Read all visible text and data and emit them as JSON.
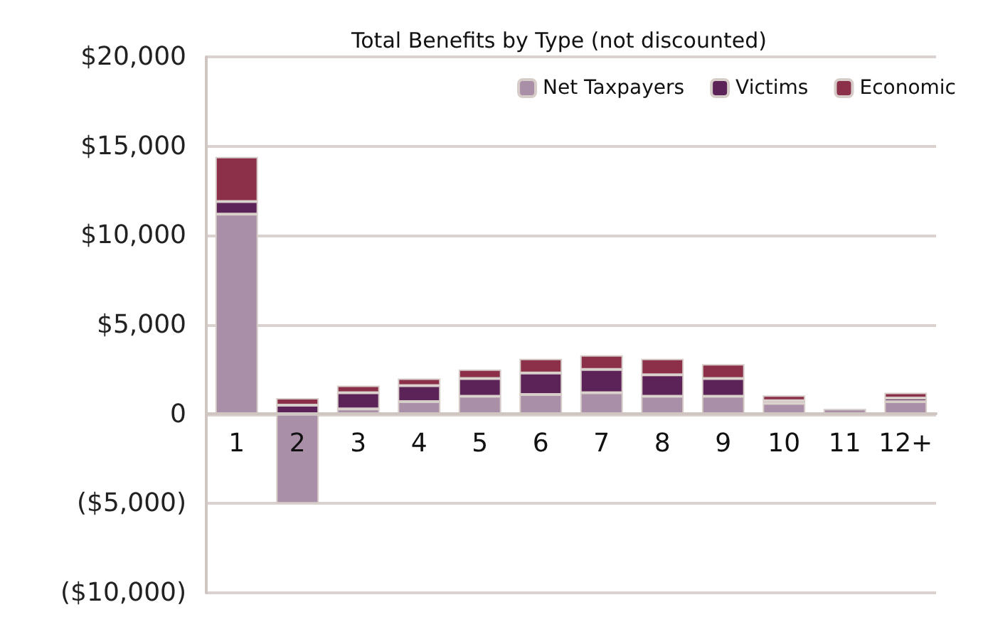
{
  "chart_data": {
    "type": "bar",
    "title": "Total Benefits by Type (not discounted)",
    "stacked": true,
    "categories": [
      "1",
      "2",
      "3",
      "4",
      "5",
      "6",
      "7",
      "8",
      "9",
      "10",
      "11",
      "12+"
    ],
    "series": [
      {
        "name": "Net Taxpayers",
        "color": "#a98fa8",
        "values": [
          11200,
          -5000,
          300,
          700,
          1000,
          1100,
          1200,
          1000,
          1000,
          600,
          300,
          700
        ]
      },
      {
        "name": "Victims",
        "color": "#5c2358",
        "values": [
          700,
          500,
          900,
          900,
          1000,
          1200,
          1300,
          1200,
          1000,
          150,
          null,
          200
        ]
      },
      {
        "name": "Economic",
        "color": "#8b3048",
        "values": [
          2500,
          400,
          400,
          400,
          500,
          800,
          800,
          900,
          800,
          300,
          null,
          300
        ]
      }
    ],
    "ylim": [
      -10000,
      20000
    ],
    "yticks": [
      {
        "value": -10000,
        "label": "($10,000)"
      },
      {
        "value": -5000,
        "label": "($5,000)"
      },
      0,
      {
        "value": 5000,
        "label": "$5,000"
      },
      {
        "value": 10000,
        "label": "$10,000"
      },
      {
        "value": 15000,
        "label": "$15,000"
      },
      {
        "value": 20000,
        "label": "$20,000"
      }
    ],
    "grid": "y",
    "legend": "top right"
  }
}
